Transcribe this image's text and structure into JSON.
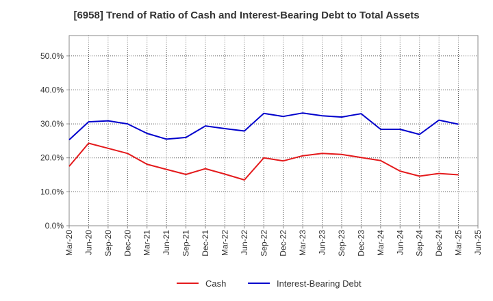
{
  "chart_data": {
    "type": "line",
    "title": "[6958]  Trend of Ratio of Cash and Interest-Bearing Debt to Total Assets",
    "xlabel": "",
    "ylabel": "",
    "x": [
      "Mar-20",
      "Jun-20",
      "Sep-20",
      "Dec-20",
      "Mar-21",
      "Jun-21",
      "Sep-21",
      "Dec-21",
      "Mar-22",
      "Jun-22",
      "Sep-22",
      "Dec-22",
      "Mar-23",
      "Jun-23",
      "Sep-23",
      "Dec-23",
      "Mar-24",
      "Jun-24",
      "Sep-24",
      "Dec-24",
      "Mar-25",
      "Jun-25"
    ],
    "x_tick_labels": [
      "Mar-20",
      "Jun-20",
      "Sep-20",
      "Dec-20",
      "Mar-21",
      "Jun-21",
      "Sep-21",
      "Dec-21",
      "Mar-22",
      "Jun-22",
      "Sep-22",
      "Dec-22",
      "Mar-23",
      "Jun-23",
      "Sep-23",
      "Dec-23",
      "Mar-24",
      "Jun-24",
      "Sep-24",
      "Dec-24",
      "Mar-25",
      "Jun-25"
    ],
    "y_tick_labels": [
      "0.0%",
      "10.0%",
      "20.0%",
      "30.0%",
      "40.0%",
      "50.0%"
    ],
    "ylim": [
      0,
      56
    ],
    "y_ticks": [
      0,
      10,
      20,
      30,
      40,
      50
    ],
    "grid": true,
    "legend_position": "bottom-center",
    "series": [
      {
        "name": "Cash",
        "color": "#e41a1c",
        "values": [
          17.5,
          24.3,
          22.8,
          21.3,
          18.1,
          16.6,
          15.1,
          16.8,
          15.2,
          13.5,
          20.0,
          19.1,
          20.6,
          21.3,
          21.0,
          20.1,
          19.2,
          16.1,
          14.6,
          15.4,
          15.0,
          null
        ]
      },
      {
        "name": "Interest-Bearing Debt",
        "color": "#0000cc",
        "values": [
          25.3,
          30.6,
          30.9,
          30.0,
          27.2,
          25.5,
          26.0,
          29.4,
          28.6,
          27.9,
          33.1,
          32.2,
          33.2,
          32.4,
          32.0,
          33.0,
          28.4,
          28.4,
          26.9,
          31.1,
          29.9,
          null
        ]
      }
    ]
  }
}
